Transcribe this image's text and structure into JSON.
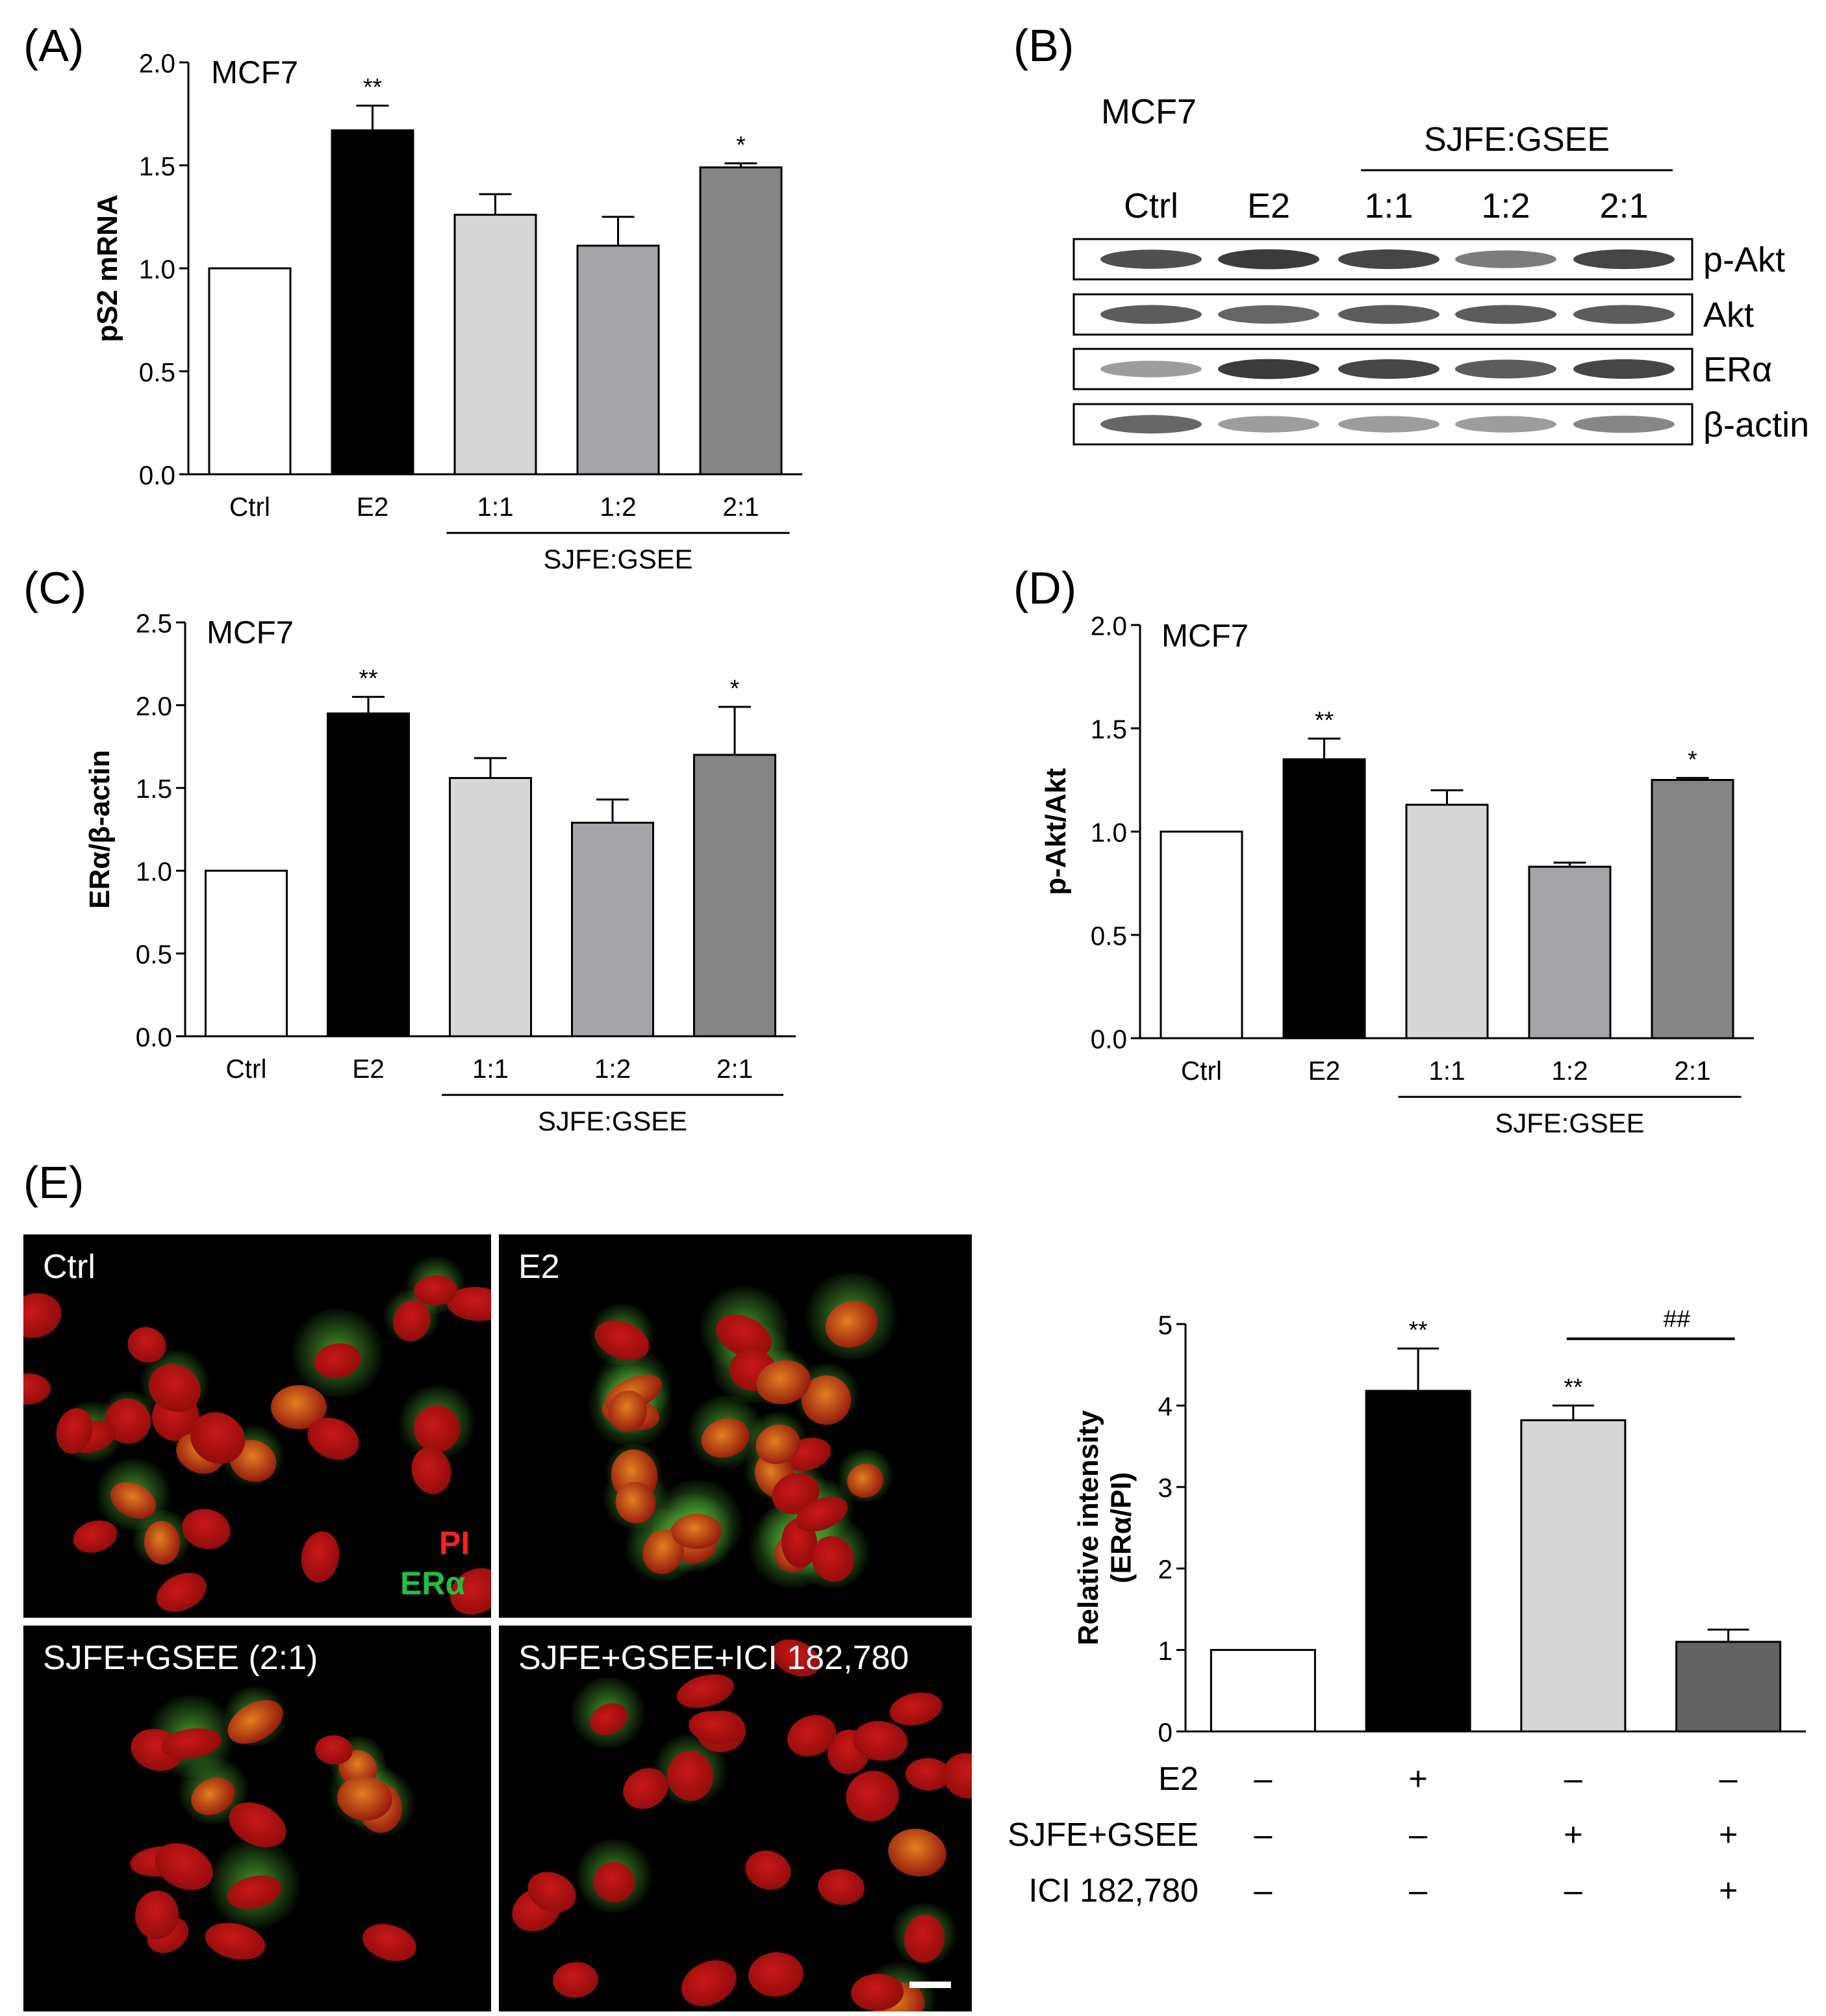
{
  "panels": {
    "A": "(A)",
    "B": "(B)",
    "C": "(C)",
    "D": "(D)",
    "E": "(E)"
  },
  "chart_data": [
    {
      "id": "A",
      "type": "bar",
      "annotation": "MCF7",
      "categories": [
        "Ctrl",
        "E2",
        "1:1",
        "1:2",
        "2:1"
      ],
      "values": [
        1.0,
        1.67,
        1.26,
        1.11,
        1.49
      ],
      "errors": [
        0,
        0.12,
        0.1,
        0.14,
        0.02
      ],
      "sig": [
        "",
        "**",
        "",
        "",
        "*"
      ],
      "colors": [
        "#ffffff",
        "#000000",
        "#d7d7d7",
        "#a5a5a9",
        "#858585"
      ],
      "ylabel": "pS2 mRNA",
      "ylim": [
        0,
        2.0
      ],
      "yticks": [
        "0.0",
        "0.5",
        "1.0",
        "1.5",
        "2.0"
      ],
      "group_label": "SJFE:GSEE"
    },
    {
      "id": "C",
      "type": "bar",
      "annotation": "MCF7",
      "categories": [
        "Ctrl",
        "E2",
        "1:1",
        "1:2",
        "2:1"
      ],
      "values": [
        1.0,
        1.95,
        1.56,
        1.29,
        1.7
      ],
      "errors": [
        0,
        0.1,
        0.12,
        0.14,
        0.29
      ],
      "sig": [
        "",
        "**",
        "",
        "",
        "*"
      ],
      "colors": [
        "#ffffff",
        "#000000",
        "#d7d7d7",
        "#a5a5a9",
        "#858585"
      ],
      "ylabel": "ERα/β-actin",
      "ylim": [
        0,
        2.5
      ],
      "yticks": [
        "0.0",
        "0.5",
        "1.0",
        "1.5",
        "2.0",
        "2.5"
      ],
      "group_label": "SJFE:GSEE"
    },
    {
      "id": "D",
      "type": "bar",
      "annotation": "MCF7",
      "categories": [
        "Ctrl",
        "E2",
        "1:1",
        "1:2",
        "2:1"
      ],
      "values": [
        1.0,
        1.35,
        1.13,
        0.83,
        1.25
      ],
      "errors": [
        0,
        0.1,
        0.07,
        0.02,
        0.01
      ],
      "sig": [
        "",
        "**",
        "",
        "",
        "*"
      ],
      "colors": [
        "#ffffff",
        "#000000",
        "#d7d7d7",
        "#a5a5a9",
        "#858585"
      ],
      "ylabel": "p-Akt/Akt",
      "ylim": [
        0,
        2.0
      ],
      "yticks": [
        "0.0",
        "0.5",
        "1.0",
        "1.5",
        "2.0"
      ],
      "group_label": "SJFE:GSEE"
    },
    {
      "id": "E",
      "type": "bar",
      "categories": [
        "Ctrl",
        "E2",
        "SJFE+GSEE (2:1)",
        "SJFE+GSEE+ICI 182,780"
      ],
      "values": [
        1.0,
        4.18,
        3.82,
        1.1
      ],
      "errors": [
        0,
        0.52,
        0.18,
        0.15
      ],
      "sig": [
        "",
        "**",
        "**",
        ""
      ],
      "colors": [
        "#ffffff",
        "#000000",
        "#d7d7d7",
        "#626262"
      ],
      "ylabel": [
        "Relative intensity",
        "(ERα/PI)"
      ],
      "ylim": [
        0,
        5
      ],
      "yticks": [
        "0",
        "1",
        "2",
        "3",
        "4",
        "5"
      ],
      "comparison": "##",
      "treatment_rows": [
        {
          "label": "E2",
          "signs": [
            "–",
            "+",
            "–",
            "–"
          ]
        },
        {
          "label": "SJFE+GSEE",
          "signs": [
            "–",
            "–",
            "+",
            "+"
          ]
        },
        {
          "label": "ICI 182,780",
          "signs": [
            "–",
            "–",
            "–",
            "+"
          ]
        }
      ]
    }
  ],
  "western": {
    "cell_line": "MCF7",
    "group_label": "SJFE:GSEE",
    "lanes": [
      "Ctrl",
      "E2",
      "1:1",
      "1:2",
      "2:1"
    ],
    "rows": [
      {
        "label": "p-Akt",
        "intensity": [
          0.8,
          0.9,
          0.85,
          0.6,
          0.85
        ]
      },
      {
        "label": "Akt",
        "intensity": [
          0.75,
          0.7,
          0.75,
          0.75,
          0.75
        ]
      },
      {
        "label": "ERα",
        "intensity": [
          0.45,
          0.9,
          0.85,
          0.75,
          0.85
        ]
      },
      {
        "label": "β-actin",
        "intensity": [
          0.7,
          0.45,
          0.45,
          0.45,
          0.55
        ]
      }
    ]
  },
  "micrographs": {
    "ctrl": "Ctrl",
    "e2": "E2",
    "combo": "SJFE+GSEE (2:1)",
    "ici": "SJFE+GSEE+ICI 182,780",
    "legend_pi": "PI",
    "legend_er": "ERα"
  }
}
